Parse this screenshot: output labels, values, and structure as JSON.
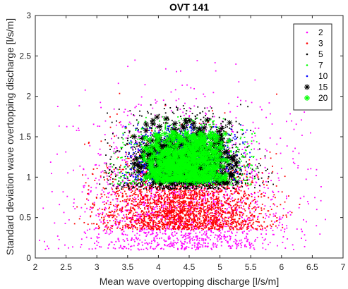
{
  "chart_data": {
    "type": "scatter",
    "title": "OVT 141",
    "xlabel": "Mean wave overtopping discharge [l/s/m]",
    "ylabel": "Standard deviation wave overtopping discharge [l/s/m]",
    "xlim": [
      2,
      7
    ],
    "ylim": [
      0,
      3
    ],
    "x_ticks": [
      2,
      2.5,
      3,
      3.5,
      4,
      4.5,
      5,
      5.5,
      6,
      6.5,
      7
    ],
    "x_tick_labels": [
      "2",
      "2.5",
      "3",
      "3.5",
      "4",
      "4.5",
      "5",
      "5.5",
      "6",
      "6.5",
      "7"
    ],
    "y_ticks": [
      0,
      0.5,
      1,
      1.5,
      2,
      2.5,
      3
    ],
    "y_tick_labels": [
      "0",
      "0.5",
      "1",
      "1.5",
      "2",
      "2.5",
      "3"
    ],
    "grid": false,
    "legend_position": "top-right",
    "series": [
      {
        "name": "2",
        "marker": "dot",
        "color": "#ff00ff",
        "center": [
          4.4,
          0.1
        ],
        "spread": [
          0.85,
          0.55
        ],
        "count": 2000,
        "x_range": [
          2.05,
          6.85
        ],
        "y_range": [
          0,
          2.45
        ]
      },
      {
        "name": "3",
        "marker": "dot",
        "color": "#ff0000",
        "center": [
          4.4,
          0.35
        ],
        "spread": [
          0.65,
          0.45
        ],
        "count": 2500,
        "x_range": [
          2.6,
          6.4
        ],
        "y_range": [
          0,
          2.25
        ]
      },
      {
        "name": "5",
        "marker": "dot",
        "color": "#000000",
        "center": [
          4.4,
          0.85
        ],
        "spread": [
          0.55,
          0.45
        ],
        "count": 1600,
        "x_range": [
          3.0,
          5.9
        ],
        "y_range": [
          0.05,
          1.9
        ]
      },
      {
        "name": "7",
        "marker": "dot",
        "color": "#00ff00",
        "center": [
          4.4,
          0.9
        ],
        "spread": [
          0.5,
          0.42
        ],
        "count": 1300,
        "x_range": [
          3.2,
          5.6
        ],
        "y_range": [
          0.15,
          1.75
        ]
      },
      {
        "name": "10",
        "marker": "dot",
        "color": "#0000ff",
        "center": [
          4.4,
          0.92
        ],
        "spread": [
          0.47,
          0.4
        ],
        "count": 1100,
        "x_range": [
          3.4,
          5.5
        ],
        "y_range": [
          0.2,
          1.65
        ]
      },
      {
        "name": "15",
        "marker": "asterisk",
        "color": "#000000",
        "center": [
          4.4,
          0.92
        ],
        "spread": [
          0.43,
          0.38
        ],
        "count": 380,
        "x_range": [
          3.6,
          5.3
        ],
        "y_range": [
          0.3,
          1.75
        ]
      },
      {
        "name": "20",
        "marker": "asterisk",
        "color": "#00ff00",
        "center": [
          4.4,
          0.95
        ],
        "spread": [
          0.38,
          0.33
        ],
        "count": 650,
        "x_range": [
          3.75,
          5.15
        ],
        "y_range": [
          0.35,
          1.55
        ]
      }
    ]
  }
}
